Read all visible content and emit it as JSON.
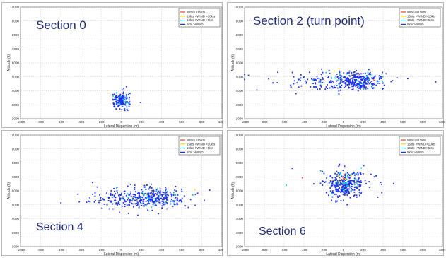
{
  "legend_colors": {
    "red": "#ff3b30",
    "yellow": "#ffd700",
    "cyan": "#00c8e0",
    "blue": "#1a30e8"
  },
  "chart_data": [
    {
      "type": "scatter",
      "section_label": "Section 0",
      "xlabel": "Lateral Dispersion (m)",
      "ylabel": "Altitude (ft)",
      "xlim": [
        -1000,
        1000
      ],
      "ylim": [
        2000,
        10000
      ],
      "x_ticks": [
        -1000,
        -800,
        -600,
        -400,
        -200,
        0,
        200,
        400,
        600,
        800,
        1000
      ],
      "y_ticks": [
        2000,
        3000,
        4000,
        5000,
        6000,
        7000,
        8000,
        9000,
        10000
      ],
      "grid": true,
      "legend_position": "top-right",
      "legend": [
        "WIND >15kts",
        "15kts >WIND >10kts",
        "10kts >WIND >5kts",
        "5kts >WIND"
      ],
      "clusters": [
        {
          "color": "blue",
          "cx": 0,
          "cy": 3300,
          "sx": 40,
          "sy": 280,
          "n": 150,
          "seed": 11
        },
        {
          "color": "cyan",
          "cx": 0,
          "cy": 3300,
          "sx": 40,
          "sy": 280,
          "n": 14,
          "seed": 12
        }
      ]
    },
    {
      "type": "scatter",
      "section_label": "Section 2 (turn point)",
      "xlabel": "Lateral Dispersion (m)",
      "ylabel": "Altitude (ft)",
      "xlim": [
        -1000,
        1000
      ],
      "ylim": [
        2000,
        10000
      ],
      "x_ticks": [
        -1000,
        -800,
        -600,
        -400,
        -200,
        0,
        200,
        400,
        600,
        800,
        1000
      ],
      "y_ticks": [
        2000,
        3000,
        4000,
        5000,
        6000,
        7000,
        8000,
        9000,
        10000
      ],
      "grid": true,
      "legend_position": "top-right",
      "legend": [
        "WIND >15kts",
        "15kts >WIND >10kts",
        "10kts >WIND >5kts",
        "5kts >WIND"
      ],
      "clusters": [
        {
          "color": "blue",
          "cx": 150,
          "cy": 4700,
          "sx": 110,
          "sy": 330,
          "n": 260,
          "seed": 21
        },
        {
          "color": "blue",
          "cx": -250,
          "cy": 4700,
          "sx": 200,
          "sy": 380,
          "n": 120,
          "seed": 22
        },
        {
          "color": "cyan",
          "cx": 100,
          "cy": 4800,
          "sx": 130,
          "sy": 350,
          "n": 25,
          "seed": 23
        },
        {
          "color": "yellow",
          "cx": -30,
          "cy": 5600,
          "sx": 40,
          "sy": 120,
          "n": 2,
          "seed": 24
        },
        {
          "color": "red",
          "cx": 150,
          "cy": 4800,
          "sx": 60,
          "sy": 200,
          "n": 3,
          "seed": 25
        }
      ]
    },
    {
      "type": "scatter",
      "section_label": "Section 4",
      "xlabel": "Lateral Dispersion (m)",
      "ylabel": "Altitude (ft)",
      "xlim": [
        -1000,
        1000
      ],
      "ylim": [
        2000,
        10000
      ],
      "x_ticks": [
        -1000,
        -800,
        -600,
        -400,
        -200,
        0,
        200,
        400,
        600,
        800,
        1000
      ],
      "y_ticks": [
        2000,
        3000,
        4000,
        5000,
        6000,
        7000,
        8000,
        9000,
        10000
      ],
      "grid": true,
      "legend_position": "top-right",
      "legend": [
        "WIND >15kts",
        "15kts >WIND >10kts",
        "10kts >WIND >5kts",
        "5kts >WIND"
      ],
      "clusters": [
        {
          "color": "blue",
          "cx": 330,
          "cy": 5500,
          "sx": 130,
          "sy": 330,
          "n": 240,
          "seed": 31
        },
        {
          "color": "blue",
          "cx": 0,
          "cy": 5500,
          "sx": 200,
          "sy": 420,
          "n": 140,
          "seed": 32
        },
        {
          "color": "cyan",
          "cx": 250,
          "cy": 5500,
          "sx": 170,
          "sy": 380,
          "n": 30,
          "seed": 33
        },
        {
          "color": "yellow",
          "cx": 250,
          "cy": 5700,
          "sx": 80,
          "sy": 200,
          "n": 4,
          "seed": 34
        }
      ]
    },
    {
      "type": "scatter",
      "section_label": "Section 6",
      "xlabel": "Lateral Dispersion (m)",
      "ylabel": "Altitude (ft)",
      "xlim": [
        -1000,
        1000
      ],
      "ylim": [
        2000,
        10000
      ],
      "x_ticks": [
        -1000,
        -800,
        -600,
        -400,
        -200,
        0,
        200,
        400,
        600,
        800,
        1000
      ],
      "y_ticks": [
        2000,
        3000,
        4000,
        5000,
        6000,
        7000,
        8000,
        9000,
        10000
      ],
      "grid": true,
      "legend_position": "top-right",
      "legend": [
        "WIND >15kts",
        "15kts >WIND >10kts",
        "10kts >WIND >5kts",
        "5kts >WIND"
      ],
      "clusters": [
        {
          "color": "blue",
          "cx": 10,
          "cy": 6500,
          "sx": 95,
          "sy": 520,
          "n": 300,
          "seed": 41
        },
        {
          "color": "cyan",
          "cx": 0,
          "cy": 6700,
          "sx": 90,
          "sy": 500,
          "n": 30,
          "seed": 42
        },
        {
          "color": "yellow",
          "cx": 0,
          "cy": 7100,
          "sx": 60,
          "sy": 400,
          "n": 8,
          "seed": 43
        },
        {
          "color": "red",
          "cx": 20,
          "cy": 6900,
          "sx": 70,
          "sy": 350,
          "n": 4,
          "seed": 44
        }
      ]
    }
  ]
}
